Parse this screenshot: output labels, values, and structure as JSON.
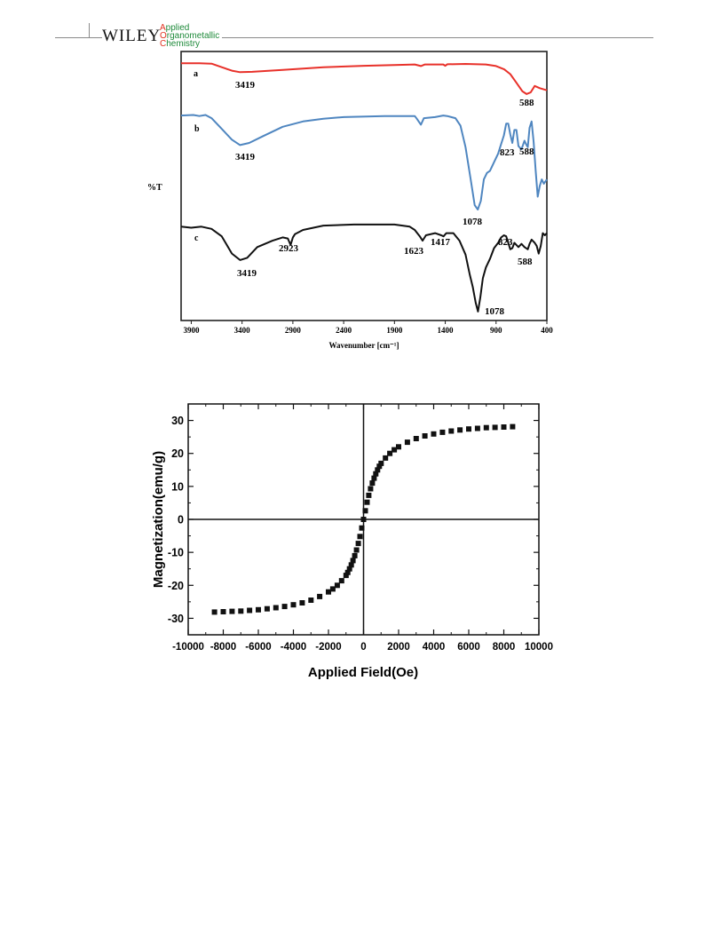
{
  "header": {
    "publisher": "WILEY",
    "journal_lines": [
      {
        "cap": "A",
        "rest": "pplied"
      },
      {
        "cap": "O",
        "rest": "rganometallic"
      },
      {
        "cap": "C",
        "rest": "hemistry"
      }
    ],
    "colors": {
      "journal_text": "#1e8a3a",
      "journal_caps": "#e0301e"
    }
  },
  "chart_data": [
    {
      "type": "line",
      "xlabel": "Wavenumber [cm⁻¹]",
      "ylabel": "%T",
      "xlim": [
        4000,
        400
      ],
      "x_reversed": true,
      "xticks": [
        3900,
        3400,
        2900,
        2400,
        1900,
        1400,
        900,
        400
      ],
      "yticks_shown": false,
      "series": [
        {
          "name": "a",
          "color": "#e8312a",
          "points": [
            [
              4000,
              0.18
            ],
            [
              3820,
              0.18
            ],
            [
              3700,
              0.22
            ],
            [
              3600,
              0.55
            ],
            [
              3500,
              0.88
            ],
            [
              3420,
              1.02
            ],
            [
              3300,
              0.98
            ],
            [
              3000,
              0.8
            ],
            [
              2600,
              0.55
            ],
            [
              2200,
              0.42
            ],
            [
              1900,
              0.35
            ],
            [
              1700,
              0.3
            ],
            [
              1640,
              0.45
            ],
            [
              1600,
              0.3
            ],
            [
              1420,
              0.3
            ],
            [
              1400,
              0.42
            ],
            [
              1380,
              0.28
            ],
            [
              1200,
              0.25
            ],
            [
              1000,
              0.3
            ],
            [
              900,
              0.45
            ],
            [
              820,
              0.75
            ],
            [
              760,
              1.2
            ],
            [
              700,
              2.0
            ],
            [
              640,
              2.8
            ],
            [
              600,
              3.05
            ],
            [
              560,
              2.9
            ],
            [
              520,
              2.3
            ],
            [
              470,
              2.5
            ],
            [
              400,
              2.7
            ]
          ],
          "peak_labels": [
            "3419",
            "588"
          ]
        },
        {
          "name": "b",
          "color": "#4f86c0",
          "points": [
            [
              4000,
              5.05
            ],
            [
              3880,
              5.0
            ],
            [
              3820,
              5.1
            ],
            [
              3760,
              5.0
            ],
            [
              3700,
              5.3
            ],
            [
              3600,
              6.3
            ],
            [
              3500,
              7.3
            ],
            [
              3420,
              7.8
            ],
            [
              3330,
              7.6
            ],
            [
              3200,
              7.0
            ],
            [
              3000,
              6.1
            ],
            [
              2800,
              5.6
            ],
            [
              2600,
              5.35
            ],
            [
              2400,
              5.2
            ],
            [
              2000,
              5.1
            ],
            [
              1700,
              5.1
            ],
            [
              1680,
              5.35
            ],
            [
              1640,
              5.9
            ],
            [
              1610,
              5.3
            ],
            [
              1500,
              5.2
            ],
            [
              1420,
              5.05
            ],
            [
              1380,
              5.1
            ],
            [
              1300,
              5.3
            ],
            [
              1250,
              6.0
            ],
            [
              1200,
              8.0
            ],
            [
              1150,
              11.0
            ],
            [
              1110,
              13.4
            ],
            [
              1080,
              13.8
            ],
            [
              1050,
              13.0
            ],
            [
              1020,
              11.0
            ],
            [
              990,
              10.4
            ],
            [
              960,
              10.2
            ],
            [
              920,
              9.4
            ],
            [
              880,
              8.6
            ],
            [
              850,
              7.7
            ],
            [
              823,
              6.9
            ],
            [
              800,
              5.8
            ],
            [
              780,
              5.8
            ],
            [
              760,
              6.8
            ],
            [
              740,
              7.6
            ],
            [
              720,
              6.4
            ],
            [
              700,
              6.4
            ],
            [
              680,
              7.9
            ],
            [
              650,
              8.2
            ],
            [
              620,
              7.4
            ],
            [
              600,
              7.8
            ],
            [
              588,
              8.0
            ],
            [
              570,
              6.2
            ],
            [
              550,
              5.6
            ],
            [
              530,
              7.5
            ],
            [
              510,
              10.2
            ],
            [
              490,
              12.6
            ],
            [
              470,
              11.6
            ],
            [
              450,
              11.0
            ],
            [
              430,
              11.4
            ],
            [
              400,
              11.0
            ]
          ],
          "peak_labels": [
            "3419",
            "823",
            "588",
            "1078"
          ]
        },
        {
          "name": "c",
          "color": "#111111",
          "points": [
            [
              4000,
              15.4
            ],
            [
              3900,
              15.5
            ],
            [
              3800,
              15.4
            ],
            [
              3700,
              15.6
            ],
            [
              3600,
              16.3
            ],
            [
              3500,
              17.9
            ],
            [
              3420,
              18.5
            ],
            [
              3350,
              18.3
            ],
            [
              3250,
              17.3
            ],
            [
              3100,
              16.7
            ],
            [
              3000,
              16.4
            ],
            [
              2950,
              16.5
            ],
            [
              2923,
              17.1
            ],
            [
              2900,
              16.4
            ],
            [
              2880,
              16.1
            ],
            [
              2800,
              15.7
            ],
            [
              2600,
              15.3
            ],
            [
              2300,
              15.2
            ],
            [
              1900,
              15.2
            ],
            [
              1750,
              15.4
            ],
            [
              1700,
              15.7
            ],
            [
              1650,
              16.3
            ],
            [
              1623,
              16.7
            ],
            [
              1590,
              16.2
            ],
            [
              1500,
              16.0
            ],
            [
              1440,
              16.2
            ],
            [
              1417,
              16.3
            ],
            [
              1390,
              16.0
            ],
            [
              1320,
              16.0
            ],
            [
              1260,
              16.7
            ],
            [
              1200,
              18.0
            ],
            [
              1160,
              19.8
            ],
            [
              1130,
              21.0
            ],
            [
              1100,
              22.5
            ],
            [
              1078,
              23.3
            ],
            [
              1055,
              22.0
            ],
            [
              1030,
              20.2
            ],
            [
              1000,
              19.2
            ],
            [
              960,
              18.4
            ],
            [
              920,
              17.4
            ],
            [
              880,
              16.9
            ],
            [
              850,
              16.4
            ],
            [
              823,
              16.2
            ],
            [
              800,
              16.3
            ],
            [
              780,
              16.9
            ],
            [
              760,
              17.5
            ],
            [
              740,
              17.4
            ],
            [
              720,
              16.9
            ],
            [
              700,
              17.1
            ],
            [
              680,
              17.3
            ],
            [
              650,
              17.0
            ],
            [
              620,
              17.3
            ],
            [
              588,
              17.5
            ],
            [
              570,
              17.0
            ],
            [
              550,
              16.6
            ],
            [
              520,
              16.9
            ],
            [
              500,
              17.2
            ],
            [
              480,
              17.9
            ],
            [
              460,
              17.2
            ],
            [
              440,
              16.0
            ],
            [
              420,
              16.2
            ],
            [
              400,
              16.0
            ]
          ],
          "peak_labels": [
            "3419",
            "2923",
            "1623",
            "1417",
            "823",
            "588",
            "1078"
          ]
        }
      ]
    },
    {
      "type": "scatter",
      "xlabel": "Applied Field(Oe)",
      "ylabel": "Magnetization(emu/g)",
      "xlim": [
        -10000,
        10000
      ],
      "ylim": [
        -35,
        35
      ],
      "xticks": [
        -10000,
        -8000,
        -6000,
        -4000,
        -2000,
        0,
        2000,
        4000,
        6000,
        8000,
        10000
      ],
      "yticks": [
        -30,
        -20,
        -10,
        0,
        10,
        20,
        30
      ],
      "zero_lines": true,
      "marker": "square",
      "series": [
        {
          "name": "",
          "points": [
            [
              -8500,
              -28.1
            ],
            [
              -8000,
              -28.0
            ],
            [
              -7500,
              -27.9
            ],
            [
              -7000,
              -27.8
            ],
            [
              -6500,
              -27.6
            ],
            [
              -6000,
              -27.4
            ],
            [
              -5500,
              -27.1
            ],
            [
              -5000,
              -26.8
            ],
            [
              -4500,
              -26.4
            ],
            [
              -4000,
              -25.9
            ],
            [
              -3500,
              -25.3
            ],
            [
              -3000,
              -24.5
            ],
            [
              -2500,
              -23.4
            ],
            [
              -2000,
              -22.0
            ],
            [
              -1750,
              -21.1
            ],
            [
              -1500,
              -20.0
            ],
            [
              -1250,
              -18.6
            ],
            [
              -1000,
              -17.0
            ],
            [
              -900,
              -16.1
            ],
            [
              -800,
              -15.0
            ],
            [
              -700,
              -13.8
            ],
            [
              -600,
              -12.5
            ],
            [
              -500,
              -11.0
            ],
            [
              -400,
              -9.3
            ],
            [
              -300,
              -7.3
            ],
            [
              -200,
              -5.2
            ],
            [
              -100,
              -2.6
            ],
            [
              0,
              0
            ],
            [
              100,
              2.6
            ],
            [
              200,
              5.2
            ],
            [
              300,
              7.3
            ],
            [
              400,
              9.3
            ],
            [
              500,
              11.0
            ],
            [
              600,
              12.5
            ],
            [
              700,
              13.8
            ],
            [
              800,
              15.0
            ],
            [
              900,
              16.1
            ],
            [
              1000,
              17.0
            ],
            [
              1250,
              18.6
            ],
            [
              1500,
              20.0
            ],
            [
              1750,
              21.1
            ],
            [
              2000,
              22.0
            ],
            [
              2500,
              23.4
            ],
            [
              3000,
              24.5
            ],
            [
              3500,
              25.3
            ],
            [
              4000,
              25.9
            ],
            [
              4500,
              26.4
            ],
            [
              5000,
              26.8
            ],
            [
              5500,
              27.1
            ],
            [
              6000,
              27.4
            ],
            [
              6500,
              27.6
            ],
            [
              7000,
              27.8
            ],
            [
              7500,
              27.9
            ],
            [
              8000,
              28.0
            ],
            [
              8500,
              28.1
            ]
          ]
        }
      ]
    }
  ]
}
